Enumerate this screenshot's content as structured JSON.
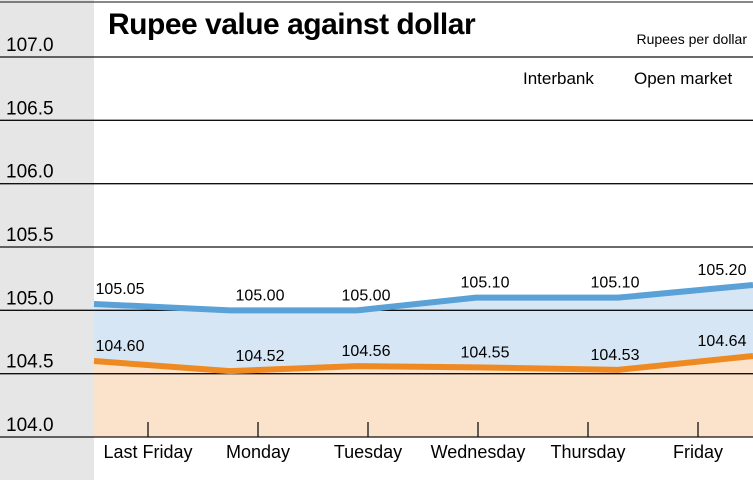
{
  "chart_data": {
    "type": "line",
    "title": "Rupee value against dollar",
    "ylabel": "Rupees per dollar",
    "categories": [
      "Last Friday",
      "Monday",
      "Tuesday",
      "Wednesday",
      "Thursday",
      "Friday"
    ],
    "ylim": [
      104.0,
      107.0
    ],
    "yticks": [
      "104.0",
      "104.5",
      "105.0",
      "105.5",
      "106.0",
      "106.5",
      "107.0"
    ],
    "grid": true,
    "legend": [
      "Interbank",
      "Open market"
    ],
    "legend_position": "top-right",
    "series": [
      {
        "key": "upper",
        "values": [
          105.05,
          105.0,
          105.0,
          105.1,
          105.1,
          105.2
        ],
        "labels": [
          "105.05",
          "105.00",
          "105.00",
          "105.10",
          "105.10",
          "105.20"
        ],
        "color": "#5aa1d8",
        "fill": "#d6e6f5"
      },
      {
        "key": "lower",
        "values": [
          104.6,
          104.52,
          104.56,
          104.55,
          104.53,
          104.64
        ],
        "labels": [
          "104.60",
          "104.52",
          "104.56",
          "104.55",
          "104.53",
          "104.64"
        ],
        "color": "#ef8a22",
        "fill": "#fbe2cb"
      }
    ]
  }
}
